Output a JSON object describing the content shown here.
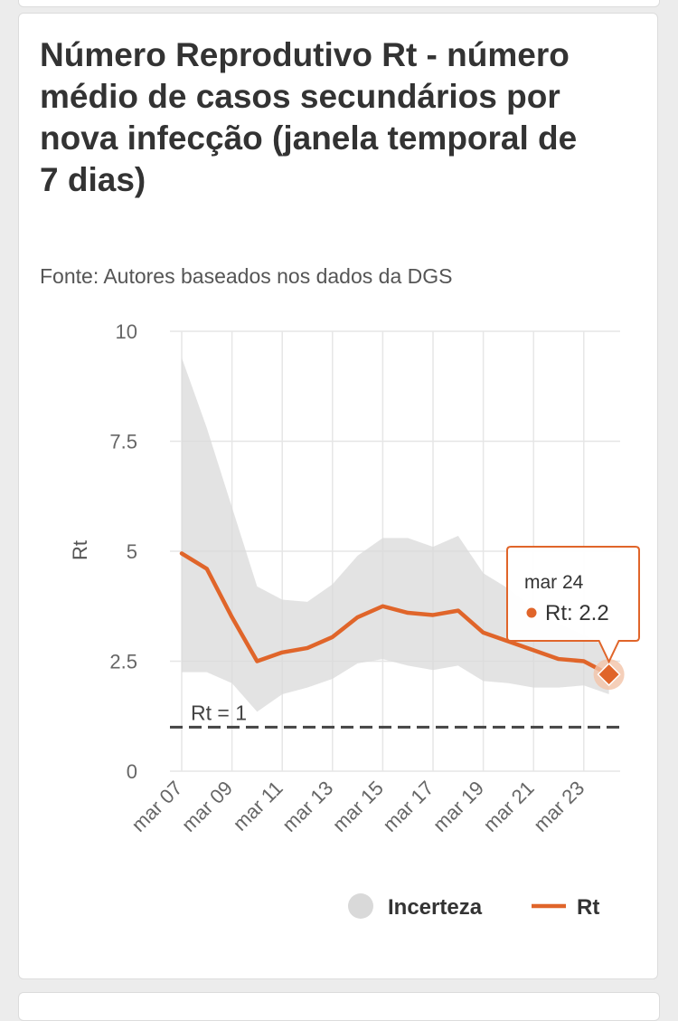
{
  "chart_data": {
    "type": "line",
    "title": "Número Reprodutivo Rt - número médio de casos secundários por nova infecção (janela temporal de 7 dias)",
    "subtitle": "Fonte: Autores baseados nos dados da DGS",
    "ylabel": "Rt",
    "xlabel": "",
    "ylim": [
      0,
      10
    ],
    "y_ticks": [
      0,
      2.5,
      5,
      7.5,
      10
    ],
    "y_tick_labels": [
      "0",
      "2.5",
      "5",
      "7.5",
      "10"
    ],
    "x_dates": [
      "mar 07",
      "mar 08",
      "mar 09",
      "mar 10",
      "mar 11",
      "mar 12",
      "mar 13",
      "mar 14",
      "mar 15",
      "mar 16",
      "mar 17",
      "mar 18",
      "mar 19",
      "mar 20",
      "mar 21",
      "mar 22",
      "mar 23",
      "mar 24"
    ],
    "x_tick_labels": [
      "mar 07",
      "mar 09",
      "mar 11",
      "mar 13",
      "mar 15",
      "mar 17",
      "mar 19",
      "mar 21",
      "mar 23"
    ],
    "series": [
      {
        "name": "Rt",
        "color": "#e0652a",
        "values": [
          4.95,
          4.6,
          3.5,
          2.5,
          2.7,
          2.8,
          3.05,
          3.5,
          3.75,
          3.6,
          3.55,
          3.65,
          3.15,
          2.95,
          2.75,
          2.55,
          2.5,
          2.2
        ]
      },
      {
        "name": "Incerteza",
        "color": "#d9d9d9",
        "type": "band",
        "lower": [
          2.25,
          2.25,
          2.0,
          1.35,
          1.75,
          1.9,
          2.1,
          2.45,
          2.55,
          2.4,
          2.3,
          2.4,
          2.05,
          2.0,
          1.9,
          1.9,
          1.95,
          1.75
        ],
        "upper": [
          9.4,
          7.8,
          6.0,
          4.2,
          3.9,
          3.85,
          4.25,
          4.9,
          5.3,
          5.3,
          5.1,
          5.35,
          4.5,
          4.15,
          3.7,
          3.35,
          3.1,
          2.8
        ]
      }
    ],
    "reference_line": {
      "value": 1,
      "label": "Rt = 1"
    },
    "legend": {
      "placement": "bottom-right",
      "items": [
        "Incerteza",
        "Rt"
      ]
    },
    "tooltip": {
      "date": "mar 24",
      "label": "Rt: 2.2"
    },
    "grid": true
  }
}
